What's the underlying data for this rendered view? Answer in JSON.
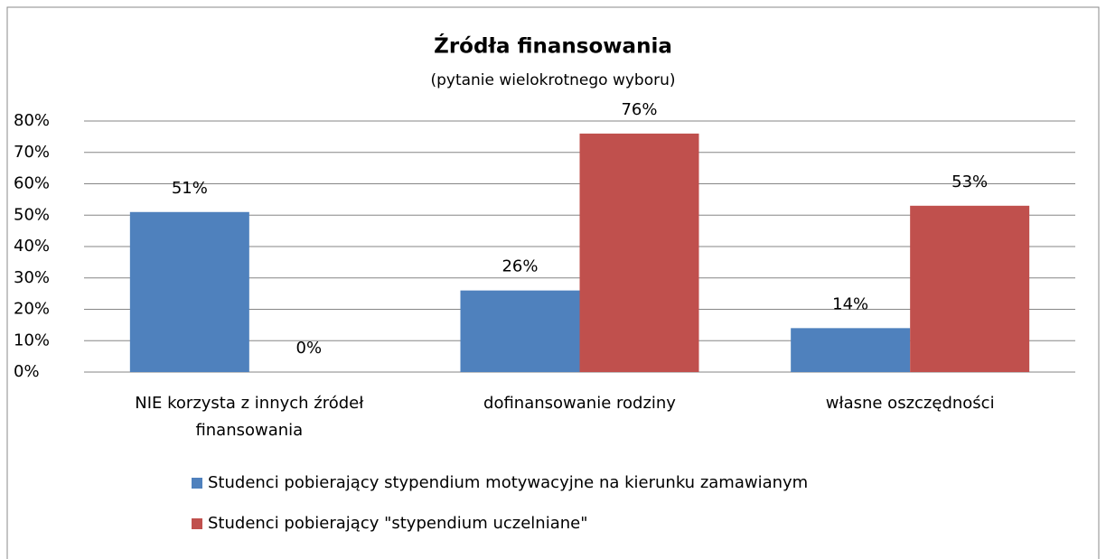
{
  "chart_data": {
    "type": "bar",
    "title": "Źródła finansowania",
    "subtitle": "(pytanie wielokrotnego wyboru)",
    "categories": [
      "NIE korzysta z innych źródeł finansowania",
      "dofinansowanie rodziny",
      "własne oszczędności"
    ],
    "series": [
      {
        "name": "Studenci pobierający stypendium motywacyjne na kierunku zamawianym",
        "color": "#4f81bd",
        "values": [
          51,
          26,
          14
        ],
        "value_labels": [
          "51%",
          "26%",
          "14%"
        ]
      },
      {
        "name": "Studenci pobierający \"stypendium uczelniane\"",
        "color": "#c0504d",
        "values": [
          0,
          76,
          53
        ],
        "value_labels": [
          "0%",
          "76%",
          "53%"
        ]
      }
    ],
    "ylim": [
      0,
      80
    ],
    "yticks": [
      {
        "value": 0,
        "label": "0%"
      },
      {
        "value": 10,
        "label": "10%"
      },
      {
        "value": 20,
        "label": "20%"
      },
      {
        "value": 30,
        "label": "30%"
      },
      {
        "value": 40,
        "label": "40%"
      },
      {
        "value": 50,
        "label": "50%"
      },
      {
        "value": 60,
        "label": "60%"
      },
      {
        "value": 70,
        "label": "70%"
      },
      {
        "value": 80,
        "label": "80%"
      }
    ],
    "grid": true
  }
}
